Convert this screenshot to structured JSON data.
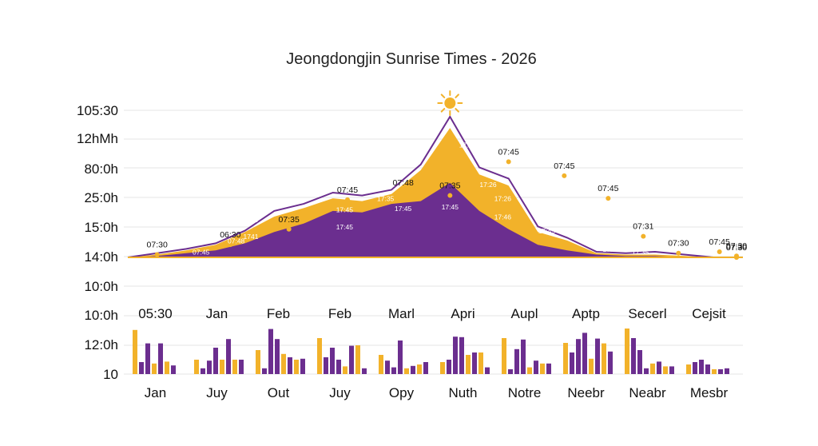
{
  "chart_data": {
    "type": "area",
    "title": "Jeongdongjin Sunrise Times - 2026",
    "colors": {
      "gold": "#F2B22A",
      "purple": "#6B2E8F",
      "dark_purple": "#4A1F6B",
      "grid": "#e6e6e6"
    },
    "y_tick_labels": [
      "105:30",
      "12hMh",
      "80:0h",
      "25:0h",
      "15:0h",
      "14:0h",
      "10:0h",
      "10:0h",
      "12:0h",
      "10"
    ],
    "area": {
      "x": [
        0,
        1,
        2,
        3,
        4,
        5,
        6,
        7,
        8,
        9,
        10,
        11,
        12,
        13,
        14,
        15,
        16,
        17,
        18,
        19,
        20,
        21
      ],
      "x_range": [
        0,
        21
      ],
      "y_range": [
        0,
        100
      ],
      "outline": [
        0,
        3,
        6,
        10,
        19,
        33,
        38,
        46,
        44,
        48,
        66,
        100,
        64,
        56,
        22,
        14,
        4,
        3,
        4,
        2,
        0,
        0
      ],
      "gold_top": [
        0,
        2,
        5,
        9,
        18,
        29,
        35,
        42,
        40,
        45,
        62,
        92,
        59,
        51,
        18,
        12,
        3,
        2,
        2,
        1,
        0,
        0
      ],
      "purple_top": [
        0,
        1,
        3,
        5,
        10,
        18,
        24,
        33,
        32,
        38,
        40,
        53,
        33,
        20,
        9,
        5,
        2,
        1,
        1,
        0,
        0,
        0
      ],
      "point_labels": [
        {
          "x": 1,
          "y": 2,
          "text": "07:30"
        },
        {
          "x": 3.5,
          "y": 9,
          "text": "06:30"
        },
        {
          "x": 5.5,
          "y": 20,
          "text": "07:35"
        },
        {
          "x": 7.5,
          "y": 41,
          "text": "07:45"
        },
        {
          "x": 9.4,
          "y": 46,
          "text": "07:48"
        },
        {
          "x": 11,
          "y": 44,
          "text": "07:35"
        },
        {
          "x": 13,
          "y": 68,
          "text": "07:45"
        },
        {
          "x": 14.9,
          "y": 58,
          "text": "07:45"
        },
        {
          "x": 16.4,
          "y": 42,
          "text": "07:45"
        },
        {
          "x": 17.6,
          "y": 15,
          "text": "07:31"
        },
        {
          "x": 18.8,
          "y": 3,
          "text": "07:30"
        },
        {
          "x": 20.2,
          "y": 4,
          "text": "07:45"
        },
        {
          "x": 20.8,
          "y": 1,
          "text": "07:30"
        },
        {
          "x": 20.95,
          "y": 0,
          "text": "07:30"
        },
        {
          "x": 21,
          "y": 0,
          "text": "07:30"
        }
      ],
      "inner_labels": [
        {
          "x": 2.5,
          "y": 2,
          "text": "07:45"
        },
        {
          "x": 3.7,
          "y": 10,
          "text": "07:48"
        },
        {
          "x": 4.2,
          "y": 25,
          "text": "17:57"
        },
        {
          "x": 4.2,
          "y": 13,
          "text": "1741"
        },
        {
          "x": 7.4,
          "y": 32,
          "text": "17:45"
        },
        {
          "x": 7.4,
          "y": 20,
          "text": "17:45"
        },
        {
          "x": 8.8,
          "y": 40,
          "text": "17:35"
        },
        {
          "x": 9.4,
          "y": 33,
          "text": "17:45"
        },
        {
          "x": 11.6,
          "y": 78,
          "text": "17:26"
        },
        {
          "x": 11,
          "y": 34,
          "text": "17:45"
        },
        {
          "x": 12.3,
          "y": 50,
          "text": "17:26"
        },
        {
          "x": 12.8,
          "y": 40,
          "text": "17:26"
        },
        {
          "x": 12.8,
          "y": 27,
          "text": "17:46"
        },
        {
          "x": 14.3,
          "y": 17,
          "text": "17:45"
        },
        {
          "x": 15.8,
          "y": 13,
          "text": "17:45"
        },
        {
          "x": 16.5,
          "y": 4,
          "text": "17:45"
        },
        {
          "x": 17.5,
          "y": 2,
          "text": "17:35"
        }
      ]
    },
    "bars": {
      "y_range": [
        0,
        100
      ],
      "month_labels_top": [
        "05:30",
        "Jan",
        "Feb",
        "Feb",
        "Marl",
        "Apri",
        "Aupl",
        "Aptp",
        "Secerl",
        "Cejsit"
      ],
      "month_labels_bottom": [
        "Jan",
        "Juy",
        "Out",
        "Juy",
        "Opy",
        "Nuth",
        "Notre",
        "Neebr",
        "Neabr",
        "Mesbr"
      ],
      "groups": [
        {
          "values": [
            92,
            25,
            64,
            22,
            64,
            26,
            18
          ],
          "colors": [
            "gold",
            "purple",
            "purple",
            "gold",
            "purple",
            "gold",
            "purple"
          ]
        },
        {
          "values": [
            30,
            12,
            28,
            55,
            30,
            73,
            30,
            30
          ],
          "colors": [
            "gold",
            "purple",
            "purple",
            "purple",
            "gold",
            "purple",
            "gold",
            "purple"
          ]
        },
        {
          "values": [
            50,
            12,
            94,
            73,
            42,
            35,
            30,
            32
          ],
          "colors": [
            "gold",
            "purple",
            "purple",
            "purple",
            "gold",
            "purple",
            "gold",
            "purple"
          ]
        },
        {
          "values": [
            75,
            35,
            55,
            30,
            16,
            59,
            60,
            12
          ],
          "colors": [
            "gold",
            "purple",
            "purple",
            "purple",
            "gold",
            "purple",
            "gold",
            "purple"
          ]
        },
        {
          "values": [
            40,
            28,
            14,
            70,
            12,
            17,
            20,
            25
          ],
          "colors": [
            "gold",
            "purple",
            "purple",
            "purple",
            "gold",
            "purple",
            "gold",
            "purple"
          ]
        },
        {
          "values": [
            25,
            30,
            78,
            77,
            40,
            45,
            45,
            14
          ],
          "colors": [
            "gold",
            "purple",
            "purple",
            "purple",
            "gold",
            "purple",
            "gold",
            "purple"
          ]
        },
        {
          "values": [
            75,
            10,
            52,
            72,
            14,
            28,
            22,
            22
          ],
          "colors": [
            "gold",
            "purple",
            "purple",
            "purple",
            "gold",
            "purple",
            "gold",
            "purple"
          ]
        },
        {
          "values": [
            65,
            45,
            73,
            86,
            32,
            74,
            64,
            47
          ],
          "colors": [
            "gold",
            "purple",
            "purple",
            "purple",
            "gold",
            "purple",
            "gold",
            "purple"
          ]
        },
        {
          "values": [
            95,
            75,
            50,
            12,
            22,
            26,
            16,
            16
          ],
          "colors": [
            "gold",
            "purple",
            "purple",
            "purple",
            "gold",
            "purple",
            "gold",
            "purple"
          ]
        },
        {
          "values": [
            20,
            25,
            30,
            20,
            10,
            10,
            12
          ],
          "colors": [
            "gold",
            "purple",
            "purple",
            "purple",
            "gold",
            "purple",
            "purple"
          ]
        }
      ]
    }
  }
}
